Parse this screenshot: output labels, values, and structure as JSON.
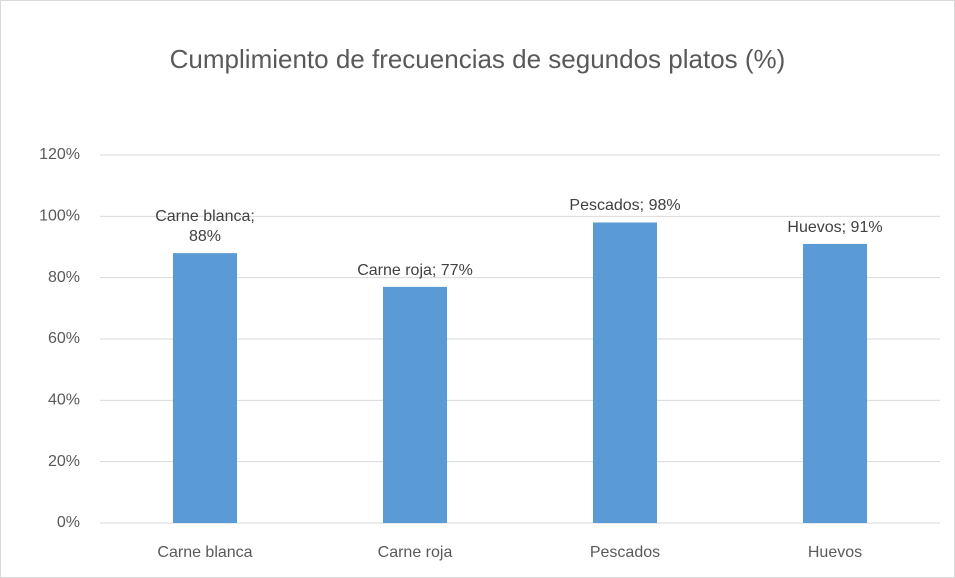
{
  "chart_data": {
    "type": "bar",
    "title": "Cumplimiento de frecuencias de segundos platos (%)",
    "categories": [
      "Carne blanca",
      "Carne roja",
      "Pescados",
      "Huevos"
    ],
    "values": [
      88,
      77,
      98,
      91
    ],
    "value_labels": [
      "Carne blanca; 88%",
      "Carne roja; 77%",
      "Pescados; 98%",
      "Huevos; 91%"
    ],
    "color": "#5b9bd5",
    "ylim": [
      0,
      120
    ],
    "yticks": [
      {
        "value": 0,
        "label": "0%"
      },
      {
        "value": 20,
        "label": "20%"
      },
      {
        "value": 40,
        "label": "40%"
      },
      {
        "value": 60,
        "label": "60%"
      },
      {
        "value": 80,
        "label": "80%"
      },
      {
        "value": 100,
        "label": "100%"
      },
      {
        "value": 120,
        "label": "120%"
      }
    ],
    "grid": true
  }
}
